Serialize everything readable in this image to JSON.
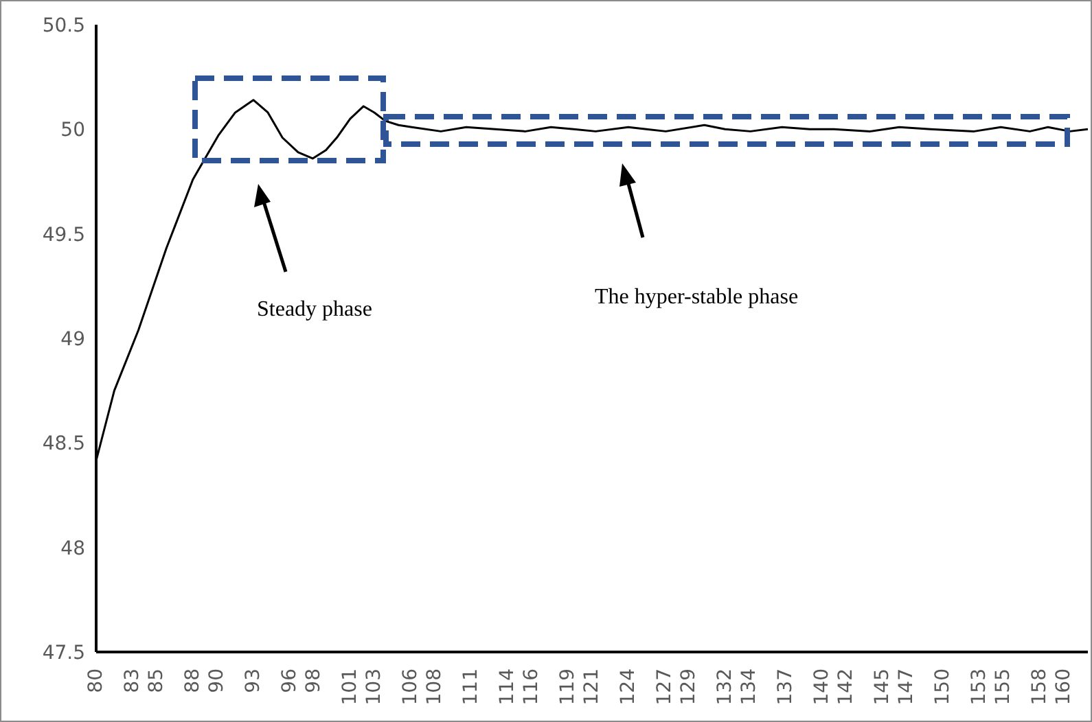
{
  "chart_data": {
    "type": "line",
    "x": [
      80,
      81.5,
      83.5,
      85.8,
      88,
      90.1,
      91.5,
      93,
      94.2,
      95.4,
      96.7,
      97.9,
      99,
      99.9,
      101,
      102.1,
      103,
      103.9,
      105,
      106.1,
      108.5,
      110.6,
      113,
      115.5,
      117.6,
      119.5,
      121.3,
      124,
      125.5,
      127.1,
      130.3,
      132,
      134.1,
      136.7,
      139,
      141,
      144,
      146.4,
      149,
      152.6,
      154.8,
      157.2,
      158.7,
      160.5,
      162
    ],
    "values": [
      48.415,
      48.75,
      49.04,
      49.43,
      49.76,
      49.97,
      50.08,
      50.14,
      50.08,
      49.96,
      49.89,
      49.86,
      49.9,
      49.96,
      50.05,
      50.11,
      50.08,
      50.04,
      50.02,
      50.01,
      49.99,
      50.01,
      50,
      49.99,
      50.01,
      50,
      49.99,
      50.01,
      50,
      49.99,
      50.02,
      50,
      49.99,
      50.01,
      50,
      50,
      49.99,
      50.01,
      50,
      49.99,
      50.01,
      49.99,
      50.01,
      49.99,
      50
    ],
    "color": "#000000",
    "marker": "none",
    "line_style": "solid",
    "grid": false,
    "legend": false,
    "xlim": [
      80,
      162
    ],
    "ylim": [
      47.5,
      50.5
    ],
    "yticks": [
      47.5,
      48,
      48.5,
      49,
      49.5,
      50,
      50.5
    ],
    "xticks": [
      80,
      83,
      85,
      88,
      90,
      93,
      96,
      98,
      101,
      103,
      106,
      108,
      111,
      114,
      116,
      119,
      121,
      124,
      127,
      129,
      132,
      134,
      137,
      140,
      142,
      145,
      147,
      150,
      153,
      155,
      158,
      160
    ],
    "annotations": [
      "Steady phase",
      "The hyper-stable phase"
    ]
  }
}
